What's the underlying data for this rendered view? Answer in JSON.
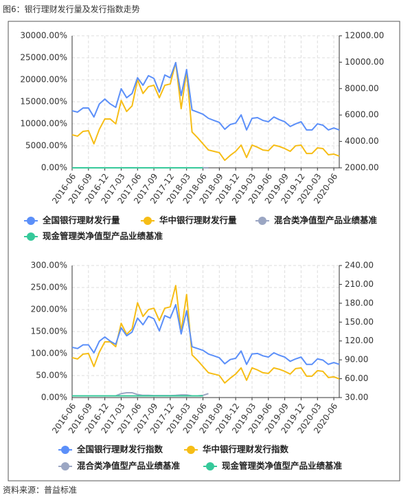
{
  "title": "图6：银行理财发行量及发行指数走势",
  "source": "资料来源：普益标准",
  "chart_data": [
    {
      "type": "line",
      "categories": [
        "2016-06",
        null,
        null,
        "2016-09",
        null,
        null,
        "2016-12",
        null,
        null,
        "2017-03",
        null,
        null,
        "2017-06",
        null,
        null,
        "2017-09",
        null,
        null,
        "2017-12",
        null,
        null,
        "2018-03",
        null,
        null,
        "2018-06",
        null,
        null,
        "2018-09",
        null,
        null,
        "2018-12",
        null,
        null,
        "2019-03",
        null,
        null,
        "2019-06",
        null,
        null,
        "2019-09",
        null,
        null,
        "2019-12",
        null,
        null,
        "2020-03",
        null,
        null,
        "2020-06",
        null
      ],
      "ylim": [
        0,
        30000
      ],
      "yticks": [
        {
          "value": 0,
          "label": "0.00%"
        },
        {
          "value": 5000,
          "label": "5000.00%"
        },
        {
          "value": 10000,
          "label": "10000.00%"
        },
        {
          "value": 15000,
          "label": "15000.00%"
        },
        {
          "value": 20000,
          "label": "20000.00%"
        },
        {
          "value": 25000,
          "label": "25000.00%"
        },
        {
          "value": 30000,
          "label": "30000.00%"
        }
      ],
      "y2lim": [
        2000,
        12000
      ],
      "y2ticks": [
        {
          "value": 2000,
          "label": "2000.00"
        },
        {
          "value": 4000,
          "label": "4000.00"
        },
        {
          "value": 6000,
          "label": "6000.00"
        },
        {
          "value": 8000,
          "label": "8000.00"
        },
        {
          "value": 10000,
          "label": "10000.00"
        },
        {
          "value": 12000,
          "label": "12000.00"
        }
      ],
      "grid": true,
      "series": [
        {
          "name": "全国银行理财发行量",
          "color": "#5b8ff9",
          "axis": "y2",
          "values": [
            6320,
            6220,
            6530,
            6530,
            5850,
            6840,
            7210,
            6840,
            6580,
            7990,
            7310,
            7630,
            8820,
            8250,
            8980,
            8770,
            7730,
            9030,
            8820,
            9970,
            7470,
            9450,
            6380,
            6220,
            6060,
            5750,
            5590,
            5440,
            4920,
            5280,
            5390,
            6010,
            4870,
            5750,
            5800,
            5590,
            5490,
            5850,
            5650,
            5490,
            5130,
            5330,
            5490,
            4870,
            4870,
            5330,
            5230,
            4870,
            5020,
            4870
          ]
        },
        {
          "name": "华中银行理财发行量",
          "color": "#f6bd16",
          "axis": "y2",
          "values": [
            4500,
            4400,
            4760,
            4810,
            3820,
            4920,
            5700,
            5700,
            5330,
            7100,
            6270,
            6690,
            8670,
            7630,
            8150,
            8250,
            7310,
            8250,
            8350,
            9970,
            6480,
            9290,
            4710,
            4290,
            3820,
            3350,
            3250,
            3150,
            2570,
            2940,
            3250,
            3720,
            2780,
            3720,
            3560,
            3350,
            3300,
            3720,
            3620,
            3460,
            3250,
            3670,
            3720,
            3090,
            3090,
            3510,
            3460,
            2990,
            3040,
            2890
          ]
        },
        {
          "name": "混合类净值型产品业绩基准",
          "color": "#9ba6c3",
          "values": [
            4,
            4,
            4,
            4,
            4,
            4,
            4,
            4,
            4,
            9,
            11,
            11,
            7,
            5,
            5,
            4.5,
            4.5,
            4.5,
            4.5,
            5,
            6,
            6,
            4,
            4,
            5,
            9,
            null,
            null,
            null,
            null,
            null,
            null,
            null,
            null,
            null,
            null,
            null,
            null,
            null,
            null,
            null,
            null,
            null,
            null,
            null,
            null,
            null,
            null,
            null,
            null
          ]
        },
        {
          "name": "现金管理类净值型产品业绩基准",
          "color": "#35c99a",
          "values": [
            4,
            4,
            4,
            4,
            4,
            4,
            4,
            4,
            4,
            4,
            4,
            4,
            4,
            4,
            4,
            4,
            4,
            4,
            4,
            4,
            4,
            4,
            4,
            4,
            4,
            null,
            null,
            null,
            null,
            null,
            null,
            null,
            null,
            null,
            null,
            null,
            null,
            null,
            null,
            null,
            null,
            null,
            null,
            null,
            null,
            null,
            null,
            null,
            null,
            null
          ]
        }
      ]
    },
    {
      "type": "line",
      "categories": [
        "2016-06",
        null,
        null,
        "2016-09",
        null,
        null,
        "2016-12",
        null,
        null,
        "2017-03",
        null,
        null,
        "2017-06",
        null,
        null,
        "2017-09",
        null,
        null,
        "2017-12",
        null,
        null,
        "2018-03",
        null,
        null,
        "2018-06",
        null,
        null,
        "2018-09",
        null,
        null,
        "2018-12",
        null,
        null,
        "2019-03",
        null,
        null,
        "2019-06",
        null,
        null,
        "2019-09",
        null,
        null,
        "2019-12",
        null,
        null,
        "2020-03",
        null,
        null,
        "2020-06",
        null
      ],
      "ylim": [
        0,
        300
      ],
      "yticks": [
        {
          "value": 0,
          "label": "0.00%"
        },
        {
          "value": 50,
          "label": "50.00%"
        },
        {
          "value": 100,
          "label": "100.00%"
        },
        {
          "value": 150,
          "label": "150.00%"
        },
        {
          "value": 200,
          "label": "200.00%"
        },
        {
          "value": 250,
          "label": "250.00%"
        },
        {
          "value": 300,
          "label": "300.00%"
        }
      ],
      "y2lim": [
        30,
        240
      ],
      "y2ticks": [
        {
          "value": 30,
          "label": "30.00"
        },
        {
          "value": 60,
          "label": "60.00"
        },
        {
          "value": 90,
          "label": "90.00"
        },
        {
          "value": 120,
          "label": "120.00"
        },
        {
          "value": 150,
          "label": "150.00"
        },
        {
          "value": 180,
          "label": "180.00"
        },
        {
          "value": 210,
          "label": "210.00"
        },
        {
          "value": 240,
          "label": "240.00"
        }
      ],
      "grid": true,
      "series": [
        {
          "name": "全国银行理财发行指数",
          "color": "#5b8ff9",
          "axis": "y2",
          "values": [
            109.9,
            108.0,
            113.8,
            113.8,
            101.2,
            119.6,
            126.4,
            119.6,
            114.7,
            140.9,
            128.3,
            134.1,
            156.4,
            145.8,
            159.3,
            155.4,
            136.1,
            160.3,
            156.4,
            177.7,
            131.2,
            168.0,
            110.9,
            108.0,
            105.1,
            99.3,
            96.4,
            93.4,
            83.8,
            90.5,
            92.5,
            104.1,
            82.8,
            99.3,
            100.2,
            96.4,
            94.4,
            101.2,
            97.3,
            94.4,
            87.6,
            91.5,
            94.4,
            82.8,
            82.8,
            91.5,
            89.6,
            82.8,
            85.7,
            82.8
          ]
        },
        {
          "name": "华中银行理财发行指数",
          "color": "#f6bd16",
          "axis": "y2",
          "values": [
            93.5,
            91.4,
            99.0,
            100.1,
            79.4,
            102.3,
            118.6,
            118.6,
            111.0,
            148.1,
            130.6,
            139.3,
            180.8,
            159.0,
            169.9,
            172.1,
            152.4,
            172.1,
            174.2,
            208.1,
            135.0,
            193.9,
            97.9,
            89.2,
            79.4,
            69.5,
            67.4,
            65.2,
            53.2,
            60.8,
            67.4,
            77.2,
            57.5,
            77.2,
            73.9,
            69.5,
            68.4,
            77.2,
            75.0,
            71.7,
            67.4,
            76.1,
            77.2,
            64.1,
            64.1,
            72.8,
            71.7,
            61.9,
            63.0,
            59.7
          ]
        },
        {
          "name": "混合类净值型产品业绩基准",
          "color": "#9ba6c3",
          "values": [
            4,
            4,
            4,
            4,
            4,
            4,
            4,
            4,
            4,
            9,
            11,
            11,
            7,
            5,
            5,
            4.5,
            4.5,
            4.5,
            4.5,
            5,
            6,
            6,
            4,
            4,
            5,
            9,
            null,
            null,
            null,
            null,
            null,
            null,
            null,
            null,
            null,
            null,
            null,
            null,
            null,
            null,
            null,
            null,
            null,
            null,
            null,
            null,
            null,
            null,
            null,
            null
          ]
        },
        {
          "name": "现金管理类净值型产品业绩基准",
          "color": "#35c99a",
          "values": [
            4,
            4,
            4,
            4,
            4,
            4,
            4,
            4,
            4,
            4,
            4,
            4,
            4,
            4,
            4,
            4,
            4,
            4,
            4,
            4,
            4,
            4,
            4,
            4,
            4,
            null,
            null,
            null,
            null,
            null,
            null,
            null,
            null,
            null,
            null,
            null,
            null,
            null,
            null,
            null,
            null,
            null,
            null,
            null,
            null,
            null,
            null,
            null,
            null,
            null
          ]
        }
      ]
    }
  ]
}
